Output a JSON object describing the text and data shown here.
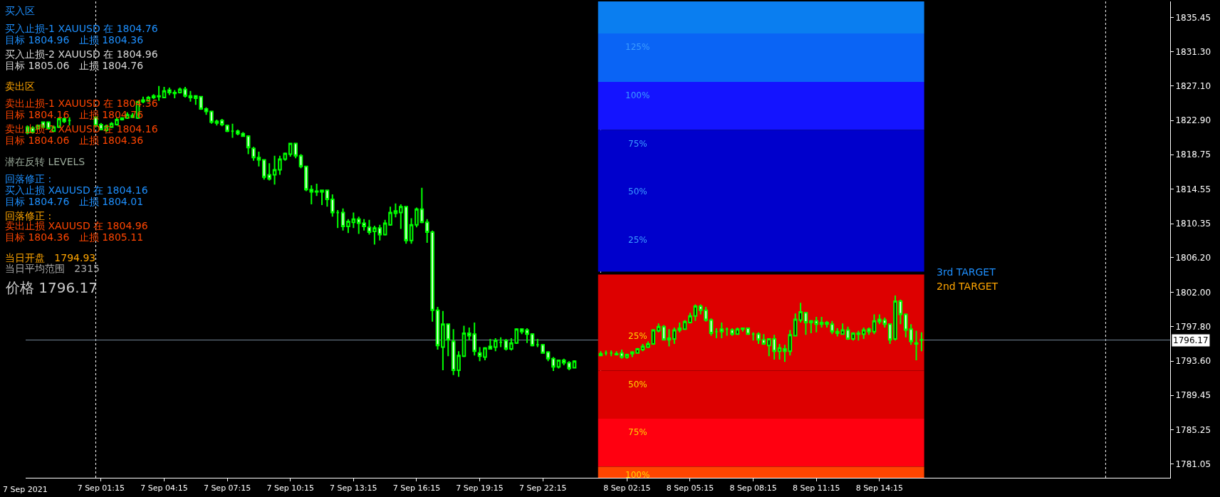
{
  "chart_data": {
    "type": "candlestick",
    "color": "#00ff00",
    "x": [
      "2021-09-06T21:45",
      "2021-09-06T22:00",
      "2021-09-06T22:15",
      "2021-09-06T22:30",
      "2021-09-06T22:45",
      "2021-09-06T23:00",
      "2021-09-06T23:15",
      "2021-09-06T23:30",
      "2021-09-06T23:45",
      "2021-09-07T01:00",
      "2021-09-07T01:15",
      "2021-09-07T01:30",
      "2021-09-07T01:45",
      "2021-09-07T02:00",
      "2021-09-07T02:15",
      "2021-09-07T02:30",
      "2021-09-07T02:45",
      "2021-09-07T03:00",
      "2021-09-07T03:15",
      "2021-09-07T03:30",
      "2021-09-07T03:45",
      "2021-09-07T04:00",
      "2021-09-07T04:15",
      "2021-09-07T04:30",
      "2021-09-07T04:45",
      "2021-09-07T05:00",
      "2021-09-07T05:15",
      "2021-09-07T05:30",
      "2021-09-07T05:45",
      "2021-09-07T06:00",
      "2021-09-07T06:15",
      "2021-09-07T06:30",
      "2021-09-07T06:45",
      "2021-09-07T07:00",
      "2021-09-07T07:15",
      "2021-09-07T07:30",
      "2021-09-07T07:45",
      "2021-09-07T08:00",
      "2021-09-07T08:15",
      "2021-09-07T08:30",
      "2021-09-07T08:45",
      "2021-09-07T09:00",
      "2021-09-07T09:15",
      "2021-09-07T09:30",
      "2021-09-07T09:45",
      "2021-09-07T10:00",
      "2021-09-07T10:15",
      "2021-09-07T10:30",
      "2021-09-07T10:45",
      "2021-09-07T11:00",
      "2021-09-07T11:15",
      "2021-09-07T11:30",
      "2021-09-07T11:45",
      "2021-09-07T12:00",
      "2021-09-07T12:15",
      "2021-09-07T12:30",
      "2021-09-07T12:45",
      "2021-09-07T13:00",
      "2021-09-07T13:15",
      "2021-09-07T13:30",
      "2021-09-07T13:45",
      "2021-09-07T14:00",
      "2021-09-07T14:15",
      "2021-09-07T14:30",
      "2021-09-07T14:45",
      "2021-09-07T15:00",
      "2021-09-07T15:15",
      "2021-09-07T15:30",
      "2021-09-07T15:45",
      "2021-09-07T16:00",
      "2021-09-07T16:15",
      "2021-09-07T16:30",
      "2021-09-07T16:45",
      "2021-09-07T17:00",
      "2021-09-07T17:15",
      "2021-09-07T17:30",
      "2021-09-07T17:45",
      "2021-09-07T18:00",
      "2021-09-07T18:15",
      "2021-09-07T18:30",
      "2021-09-07T18:45",
      "2021-09-07T19:00",
      "2021-09-07T19:15",
      "2021-09-07T19:30",
      "2021-09-07T19:45",
      "2021-09-07T20:00",
      "2021-09-07T20:15",
      "2021-09-07T20:30",
      "2021-09-07T20:45",
      "2021-09-07T21:00",
      "2021-09-07T21:15",
      "2021-09-07T21:30",
      "2021-09-07T21:45",
      "2021-09-07T22:00",
      "2021-09-07T22:15",
      "2021-09-07T22:30",
      "2021-09-07T22:45",
      "2021-09-07T23:00",
      "2021-09-07T23:15",
      "2021-09-07T23:30",
      "2021-09-07T23:45",
      "2021-09-08T01:00",
      "2021-09-08T01:15",
      "2021-09-08T01:30",
      "2021-09-08T01:45",
      "2021-09-08T02:00",
      "2021-09-08T02:15",
      "2021-09-08T02:30",
      "2021-09-08T02:45",
      "2021-09-08T03:00",
      "2021-09-08T03:15",
      "2021-09-08T03:30",
      "2021-09-08T03:45",
      "2021-09-08T04:00",
      "2021-09-08T04:15",
      "2021-09-08T04:30",
      "2021-09-08T04:45",
      "2021-09-08T05:00",
      "2021-09-08T05:15",
      "2021-09-08T05:30",
      "2021-09-08T05:45",
      "2021-09-08T06:00",
      "2021-09-08T06:15",
      "2021-09-08T06:30",
      "2021-09-08T06:45",
      "2021-09-08T07:00",
      "2021-09-08T07:15",
      "2021-09-08T07:30",
      "2021-09-08T07:45",
      "2021-09-08T08:00",
      "2021-09-08T08:15",
      "2021-09-08T08:30",
      "2021-09-08T08:45",
      "2021-09-08T09:00",
      "2021-09-08T09:15",
      "2021-09-08T09:30",
      "2021-09-08T09:45",
      "2021-09-08T10:00",
      "2021-09-08T10:15",
      "2021-09-08T10:30",
      "2021-09-08T10:45",
      "2021-09-08T11:00",
      "2021-09-08T11:15",
      "2021-09-08T11:30",
      "2021-09-08T11:45",
      "2021-09-08T12:00",
      "2021-09-08T12:15",
      "2021-09-08T12:30",
      "2021-09-08T12:45",
      "2021-09-08T13:00",
      "2021-09-08T13:15",
      "2021-09-08T13:30",
      "2021-09-08T13:45",
      "2021-09-08T14:00",
      "2021-09-08T14:15",
      "2021-09-08T14:30",
      "2021-09-08T14:45",
      "2021-09-08T15:00",
      "2021-09-08T15:15",
      "2021-09-08T15:30",
      "2021-09-08T15:45",
      "2021-09-08T16:00",
      "2021-09-08T16:15"
    ],
    "ohlc": [
      [
        1822.1,
        1822.3,
        1821.2,
        1821.4
      ],
      [
        1822.0,
        1822.2,
        1821.3,
        1821.5
      ],
      [
        1821.9,
        1822.4,
        1821.8,
        1822.3
      ],
      [
        1822.7,
        1822.8,
        1822.0,
        1822.1
      ],
      [
        1822.7,
        1822.8,
        1821.8,
        1821.9
      ],
      [
        1821.6,
        1822.3,
        1821.5,
        1822.1
      ],
      [
        1822.1,
        1823.3,
        1822.0,
        1823.1
      ],
      [
        1823.1,
        1823.3,
        1822.6,
        1822.8
      ],
      [
        1822.9,
        1823.3,
        1822.3,
        1822.9
      ],
      [
        1823.3,
        1823.4,
        1822.1,
        1822.3
      ],
      [
        1822.4,
        1822.6,
        1821.7,
        1821.8
      ],
      [
        1821.7,
        1822.4,
        1821.5,
        1822.2
      ],
      [
        1822.1,
        1822.7,
        1822.0,
        1822.5
      ],
      [
        1822.4,
        1823.3,
        1822.3,
        1823.0
      ],
      [
        1823.0,
        1823.3,
        1822.9,
        1823.2
      ],
      [
        1823.2,
        1823.9,
        1823.1,
        1823.6
      ],
      [
        1823.5,
        1823.8,
        1823.2,
        1823.3
      ],
      [
        1823.2,
        1825.3,
        1823.1,
        1825.2
      ],
      [
        1825.2,
        1825.8,
        1825.0,
        1825.4
      ],
      [
        1825.3,
        1825.9,
        1825.2,
        1825.7
      ],
      [
        1825.9,
        1826.1,
        1825.5,
        1825.7
      ],
      [
        1825.9,
        1827.1,
        1825.3,
        1825.8
      ],
      [
        1825.7,
        1827.0,
        1825.6,
        1826.5
      ],
      [
        1826.6,
        1826.9,
        1826.0,
        1826.3
      ],
      [
        1826.3,
        1826.6,
        1825.6,
        1826.2
      ],
      [
        1826.3,
        1826.9,
        1826.2,
        1826.7
      ],
      [
        1826.7,
        1827.0,
        1825.7,
        1825.9
      ],
      [
        1825.9,
        1826.5,
        1825.2,
        1825.7
      ],
      [
        1825.9,
        1826.0,
        1824.8,
        1825.6
      ],
      [
        1825.8,
        1825.9,
        1824.2,
        1824.3
      ],
      [
        1824.3,
        1824.5,
        1823.6,
        1824.0
      ],
      [
        1824.0,
        1824.1,
        1822.5,
        1822.7
      ],
      [
        1822.8,
        1823.0,
        1822.3,
        1822.6
      ],
      [
        1822.9,
        1823.1,
        1822.2,
        1822.4
      ],
      [
        1822.3,
        1822.4,
        1821.5,
        1821.6
      ],
      [
        1821.6,
        1822.5,
        1820.8,
        1821.6
      ],
      [
        1821.6,
        1821.8,
        1821.1,
        1821.3
      ],
      [
        1821.3,
        1821.5,
        1820.9,
        1821.0
      ],
      [
        1821.0,
        1821.1,
        1818.8,
        1819.6
      ],
      [
        1819.5,
        1819.7,
        1818.0,
        1818.4
      ],
      [
        1818.4,
        1819.1,
        1817.3,
        1818.1
      ],
      [
        1818.1,
        1818.2,
        1815.7,
        1816.0
      ],
      [
        1816.3,
        1817.7,
        1815.6,
        1815.8
      ],
      [
        1816.3,
        1818.6,
        1815.1,
        1816.9
      ],
      [
        1816.9,
        1818.6,
        1816.3,
        1818.2
      ],
      [
        1818.2,
        1819.0,
        1818.0,
        1818.9
      ],
      [
        1818.8,
        1820.2,
        1818.5,
        1820.1
      ],
      [
        1820.1,
        1820.2,
        1818.3,
        1818.6
      ],
      [
        1818.6,
        1818.8,
        1817.1,
        1817.3
      ],
      [
        1817.3,
        1817.4,
        1814.3,
        1814.5
      ],
      [
        1814.5,
        1815.0,
        1812.7,
        1814.2
      ],
      [
        1814.3,
        1815.2,
        1813.7,
        1814.2
      ],
      [
        1814.4,
        1814.5,
        1812.6,
        1814.2
      ],
      [
        1814.4,
        1814.5,
        1812.4,
        1813.3
      ],
      [
        1813.3,
        1813.9,
        1811.2,
        1811.7
      ],
      [
        1811.7,
        1812.0,
        1809.8,
        1811.7
      ],
      [
        1811.7,
        1812.2,
        1809.5,
        1810.0
      ],
      [
        1810.0,
        1810.9,
        1809.2,
        1810.6
      ],
      [
        1810.5,
        1811.7,
        1809.8,
        1810.9
      ],
      [
        1810.9,
        1811.2,
        1809.1,
        1810.4
      ],
      [
        1810.4,
        1810.9,
        1809.5,
        1810.0
      ],
      [
        1809.9,
        1810.8,
        1809.0,
        1809.3
      ],
      [
        1809.4,
        1810.1,
        1807.8,
        1809.8
      ],
      [
        1809.8,
        1810.2,
        1808.3,
        1809.0
      ],
      [
        1809.0,
        1810.8,
        1808.9,
        1810.4
      ],
      [
        1810.2,
        1812.4,
        1810.1,
        1811.7
      ],
      [
        1811.6,
        1812.8,
        1811.1,
        1811.9
      ],
      [
        1811.7,
        1812.7,
        1809.7,
        1812.4
      ],
      [
        1812.4,
        1812.5,
        1807.9,
        1808.3
      ],
      [
        1808.3,
        1811.0,
        1807.9,
        1810.2
      ],
      [
        1810.2,
        1812.3,
        1809.9,
        1812.1
      ],
      [
        1812.1,
        1814.7,
        1810.4,
        1810.5
      ],
      [
        1810.5,
        1810.9,
        1808.0,
        1809.3
      ],
      [
        1809.3,
        1809.5,
        1798.4,
        1799.8
      ],
      [
        1799.8,
        1800.2,
        1795.0,
        1795.5
      ],
      [
        1795.3,
        1799.7,
        1792.5,
        1798.1
      ],
      [
        1798.1,
        1798.2,
        1794.2,
        1796.2
      ],
      [
        1796.0,
        1797.5,
        1791.9,
        1792.5
      ],
      [
        1792.5,
        1794.8,
        1791.7,
        1794.3
      ],
      [
        1794.2,
        1797.9,
        1794.1,
        1797.0
      ],
      [
        1797.0,
        1797.7,
        1796.1,
        1796.7
      ],
      [
        1796.9,
        1798.3,
        1794.3,
        1794.8
      ],
      [
        1794.6,
        1795.3,
        1793.6,
        1794.2
      ],
      [
        1794.1,
        1795.3,
        1793.7,
        1795.2
      ],
      [
        1795.4,
        1796.3,
        1795.0,
        1795.1
      ],
      [
        1795.3,
        1796.4,
        1794.8,
        1796.1
      ],
      [
        1795.9,
        1796.5,
        1795.3,
        1795.9
      ],
      [
        1796.1,
        1796.3,
        1794.9,
        1795.1
      ],
      [
        1795.1,
        1796.4,
        1794.9,
        1795.8
      ],
      [
        1795.8,
        1797.6,
        1795.7,
        1797.5
      ],
      [
        1797.5,
        1797.6,
        1796.9,
        1797.2
      ],
      [
        1797.4,
        1797.6,
        1795.8,
        1796.9
      ],
      [
        1796.9,
        1797.0,
        1795.4,
        1795.5
      ],
      [
        1795.6,
        1796.3,
        1795.3,
        1795.6
      ],
      [
        1795.6,
        1795.7,
        1794.5,
        1794.6
      ],
      [
        1794.7,
        1794.8,
        1793.6,
        1793.9
      ],
      [
        1793.9,
        1794.1,
        1792.4,
        1792.9
      ],
      [
        1792.9,
        1793.8,
        1792.7,
        1793.7
      ],
      [
        1793.7,
        1793.9,
        1793.1,
        1793.4
      ],
      [
        1793.4,
        1793.6,
        1792.5,
        1792.7
      ],
      [
        1792.8,
        1793.7,
        1792.7,
        1793.6
      ],
      [
        1794.5,
        1794.8,
        1794.2,
        1794.3
      ],
      [
        1794.6,
        1794.9,
        1794.3,
        1794.6
      ],
      [
        1794.6,
        1794.9,
        1794.2,
        1794.6
      ],
      [
        1794.5,
        1794.8,
        1794.3,
        1794.4
      ],
      [
        1794.6,
        1795.0,
        1793.9,
        1794.1
      ],
      [
        1794.1,
        1794.5,
        1793.9,
        1794.4
      ],
      [
        1794.5,
        1794.8,
        1794.1,
        1794.7
      ],
      [
        1794.6,
        1795.2,
        1794.5,
        1795.1
      ],
      [
        1795.0,
        1795.7,
        1794.8,
        1795.4
      ],
      [
        1795.3,
        1796.0,
        1795.2,
        1795.7
      ],
      [
        1795.7,
        1797.5,
        1795.6,
        1797.4
      ],
      [
        1797.3,
        1798.2,
        1797.1,
        1797.8
      ],
      [
        1797.8,
        1798.0,
        1796.1,
        1796.2
      ],
      [
        1796.4,
        1797.5,
        1795.4,
        1796.2
      ],
      [
        1796.3,
        1797.7,
        1795.7,
        1797.4
      ],
      [
        1797.6,
        1798.3,
        1797.1,
        1797.4
      ],
      [
        1797.5,
        1798.6,
        1797.4,
        1798.4
      ],
      [
        1798.3,
        1799.5,
        1798.2,
        1799.1
      ],
      [
        1799.1,
        1800.5,
        1798.5,
        1800.3
      ],
      [
        1800.3,
        1800.5,
        1799.3,
        1799.8
      ],
      [
        1799.8,
        1800.2,
        1798.4,
        1798.6
      ],
      [
        1798.6,
        1798.8,
        1796.7,
        1797.0
      ],
      [
        1797.2,
        1797.6,
        1796.4,
        1797.2
      ],
      [
        1797.5,
        1798.3,
        1796.4,
        1797.2
      ],
      [
        1797.5,
        1797.7,
        1796.7,
        1797.5
      ],
      [
        1797.4,
        1797.6,
        1796.7,
        1796.9
      ],
      [
        1796.9,
        1797.7,
        1796.8,
        1797.5
      ],
      [
        1797.6,
        1797.7,
        1797.2,
        1797.5
      ],
      [
        1797.6,
        1797.7,
        1796.8,
        1796.9
      ],
      [
        1796.9,
        1797.1,
        1796.1,
        1796.9
      ],
      [
        1796.9,
        1797.1,
        1795.7,
        1796.2
      ],
      [
        1796.2,
        1796.9,
        1795.6,
        1795.7
      ],
      [
        1795.5,
        1796.4,
        1794.2,
        1796.3
      ],
      [
        1796.3,
        1796.8,
        1793.8,
        1794.8
      ],
      [
        1794.8,
        1795.7,
        1793.8,
        1795.2
      ],
      [
        1795.1,
        1795.6,
        1793.5,
        1794.8
      ],
      [
        1794.8,
        1797.4,
        1794.3,
        1796.8
      ],
      [
        1796.7,
        1799.4,
        1796.6,
        1798.7
      ],
      [
        1798.6,
        1800.7,
        1798.3,
        1799.6
      ],
      [
        1799.5,
        1799.6,
        1796.8,
        1798.3
      ],
      [
        1798.5,
        1798.6,
        1797.0,
        1798.3
      ],
      [
        1798.5,
        1799.0,
        1797.1,
        1798.1
      ],
      [
        1798.1,
        1799.0,
        1797.7,
        1798.3
      ],
      [
        1798.3,
        1798.5,
        1797.7,
        1798.1
      ],
      [
        1798.1,
        1798.5,
        1796.9,
        1797.2
      ],
      [
        1797.2,
        1797.6,
        1796.6,
        1797.0
      ],
      [
        1796.9,
        1798.2,
        1796.8,
        1797.4
      ],
      [
        1797.4,
        1797.8,
        1796.2,
        1796.3
      ],
      [
        1796.3,
        1797.1,
        1796.1,
        1797.0
      ],
      [
        1797.0,
        1797.3,
        1796.1,
        1796.9
      ],
      [
        1796.9,
        1797.7,
        1796.3,
        1797.4
      ],
      [
        1797.5,
        1797.7,
        1796.8,
        1797.2
      ],
      [
        1797.2,
        1799.3,
        1796.9,
        1798.5
      ],
      [
        1798.7,
        1799.3,
        1798.1,
        1798.4
      ],
      [
        1798.6,
        1798.9,
        1797.7,
        1798.1
      ],
      [
        1798.1,
        1798.2,
        1795.7,
        1796.2
      ],
      [
        1796.3,
        1801.6,
        1796.1,
        1800.9
      ],
      [
        1800.9,
        1801.1,
        1798.1,
        1799.3
      ],
      [
        1799.3,
        1799.4,
        1796.5,
        1797.4
      ],
      [
        1797.5,
        1798.1,
        1795.6,
        1796.0
      ],
      [
        1795.8,
        1797.3,
        1793.7,
        1795.7
      ],
      [
        1796.2,
        1797.1,
        1794.8,
        1796.17
      ]
    ],
    "xlim": [
      "2021-09-06T21:40",
      "2021-09-09T04:04"
    ],
    "xticks": [
      {
        "value": "2021-09-07T01:15",
        "label": "7 Sep 01:15"
      },
      {
        "value": "2021-09-07T04:15",
        "label": "7 Sep 04:15"
      },
      {
        "value": "2021-09-07T07:15",
        "label": "7 Sep 07:15"
      },
      {
        "value": "2021-09-07T10:15",
        "label": "7 Sep 10:15"
      },
      {
        "value": "2021-09-07T13:15",
        "label": "7 Sep 13:15"
      },
      {
        "value": "2021-09-07T16:15",
        "label": "7 Sep 16:15"
      },
      {
        "value": "2021-09-07T19:15",
        "label": "7 Sep 19:15"
      },
      {
        "value": "2021-09-07T22:15",
        "label": "7 Sep 22:15"
      },
      {
        "value": "2021-09-08T02:15",
        "label": "8 Sep 02:15"
      },
      {
        "value": "2021-09-08T05:15",
        "label": "8 Sep 05:15"
      },
      {
        "value": "2021-09-08T08:15",
        "label": "8 Sep 08:15"
      },
      {
        "value": "2021-09-08T11:15",
        "label": "8 Sep 11:15"
      },
      {
        "value": "2021-09-08T14:15",
        "label": "8 Sep 14:15"
      }
    ],
    "ylim": [
      1779.4,
      1837.4
    ],
    "yticks": [
      1835.45,
      {
        "value": 1831.3,
        "label": "1831.30"
      },
      {
        "value": 1827.1,
        "label": "1827.10"
      },
      {
        "value": 1822.9,
        "label": "1822.90"
      },
      1818.75,
      1814.55,
      1810.35,
      {
        "value": 1806.2,
        "label": "1806.20"
      },
      {
        "value": 1802,
        "label": "1802.00"
      },
      {
        "value": 1797.8,
        "label": "1797.80"
      },
      {
        "value": 1793.6,
        "label": "1793.60"
      },
      1789.45,
      1785.25,
      1781.05
    ],
    "grid": false,
    "ref_lines": [
      {
        "axis": "x",
        "value": "2021-09-07T01:00",
        "label": null,
        "color": "#ffffff",
        "line_style": "dotted"
      },
      {
        "axis": "x",
        "value": "2021-09-08T01:00",
        "label": null,
        "color": "#ffffff",
        "line_style": "dotted"
      },
      {
        "axis": "x",
        "value": "2021-09-09T01:00",
        "label": null,
        "color": "#ffffff",
        "line_style": "dotted"
      },
      {
        "axis": "y",
        "value": 1796.17,
        "label": "1796.17",
        "color": "#778899",
        "line_style": "solid"
      }
    ],
    "bands": [
      {
        "axis": "y",
        "from": 1833.5,
        "to": 1837.4,
        "label": null,
        "color": "#0a7ef0"
      },
      {
        "axis": "y",
        "from": 1827.6,
        "to": 1833.5,
        "label": "125%",
        "color": "#0a64f5"
      },
      {
        "axis": "y",
        "from": 1821.75,
        "to": 1827.6,
        "label": "100%",
        "color": "#1414ff"
      },
      {
        "axis": "y",
        "from": 1815.9,
        "to": 1821.75,
        "label": "75%",
        "color": "#0000cc"
      },
      {
        "axis": "y",
        "from": 1810.0,
        "to": 1815.9,
        "label": "50%",
        "color": "#0000cc"
      },
      {
        "axis": "y",
        "from": 1804.5,
        "to": 1810.0,
        "label": "25%",
        "color": "#0000cc"
      },
      {
        "axis": "y",
        "from": 1798.3,
        "to": 1804.15,
        "label": null,
        "color": "#dd0000"
      },
      {
        "axis": "y",
        "from": 1792.45,
        "to": 1798.3,
        "label": "25%",
        "color": "#dd0000"
      },
      {
        "axis": "y",
        "from": 1786.6,
        "to": 1792.45,
        "label": "50%",
        "color": "#dd0000"
      },
      {
        "axis": "y",
        "from": 1780.75,
        "to": 1786.6,
        "label": "75%",
        "color": "#ff0010"
      },
      {
        "axis": "y",
        "from": 1779.4,
        "to": 1780.75,
        "label": "100%",
        "color": "#ff4500"
      }
    ],
    "annotations": [
      "买入区",
      "买入止损-1 XAUUSD 在 1804.76",
      "目标 1804.96   止损 1804.36",
      "买入止损-2 XAUUSD 在 1804.96",
      "目标 1805.06   止损 1804.76",
      "卖出区",
      "卖出止损-1 XAUUSD 在 1804.36",
      "目标 1804.16   止损 1804.76",
      "卖出止损-2 XAUUSD 在 1804.16",
      "目标 1804.06   止损 1804.36",
      "潜在反转 LEVELS",
      "回落修正 :",
      "买入止损 XAUUSD 在 1804.16",
      "目标 1804.76   止损 1804.01",
      "回落修正 :",
      "卖出止损 XAUUSD 在 1804.96",
      "目标 1804.36   止损 1805.11",
      "当日开盘   1794.93",
      "当日平均范围   2315",
      "价格 1796.17",
      "3rd TARGET",
      "2nd TARGET",
      "7 Sep 2021"
    ]
  }
}
